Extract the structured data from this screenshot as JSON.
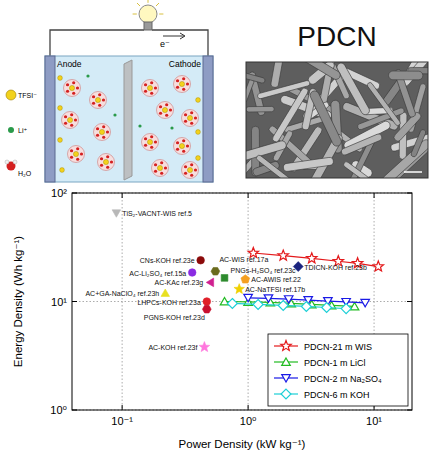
{
  "diagram": {
    "anode": "Anode",
    "cathode": "Cathode",
    "electron": "e⁻",
    "image_label": "PDCN",
    "ions": [
      {
        "label": "TFSI⁻"
      },
      {
        "label": "Li⁺"
      },
      {
        "label": "H₂O"
      }
    ]
  },
  "chart_data": {
    "type": "scatter",
    "x_label": "Power Density (kW kg⁻¹)",
    "y_label": "Energy Density (Wh kg⁻¹)",
    "log": true,
    "grid": true,
    "legend": "lower right",
    "xlim": [
      0.04,
      20
    ],
    "ylim": [
      1,
      100
    ],
    "xticks": [
      {
        "value": 0.1,
        "label": "10⁻¹"
      },
      {
        "value": 1,
        "label": "10⁰"
      },
      {
        "value": 10,
        "label": "10¹"
      }
    ],
    "yticks": [
      {
        "value": 1,
        "label": "10⁰"
      },
      {
        "value": 10,
        "label": "10¹"
      },
      {
        "value": 100,
        "label": "10²"
      }
    ],
    "series": [
      {
        "name": "PDCN-21 m WIS",
        "type": "line",
        "color": "#e41a1c",
        "marker": "open-star",
        "x": [
          1.1,
          1.9,
          3.2,
          5.2,
          7.4,
          10.8
        ],
        "values": [
          28,
          26.5,
          25,
          23.5,
          22.5,
          21
        ]
      },
      {
        "name": "PDCN-1 m LiCl",
        "type": "line",
        "color": "#22bb22",
        "marker": "open-triangle-up",
        "x": [
          0.65,
          1.0,
          1.5,
          2.2,
          3.2,
          4.6,
          7.0
        ],
        "values": [
          10,
          9.9,
          9.8,
          9.6,
          9.4,
          9.2,
          9.0
        ]
      },
      {
        "name": "PDCN-2 m Na₂SO₄",
        "type": "line",
        "color": "#1a1ae6",
        "marker": "open-triangle-down",
        "x": [
          1.0,
          1.45,
          2.1,
          3.0,
          4.3,
          6.0,
          8.5
        ],
        "values": [
          10.8,
          10.7,
          10.5,
          10.3,
          10.1,
          9.9,
          9.7
        ]
      },
      {
        "name": "PDCN-6 m KOH",
        "type": "line",
        "color": "#1ccfd6",
        "marker": "open-diamond",
        "x": [
          0.75,
          1.2,
          1.9,
          2.9,
          4.2,
          6.0
        ],
        "values": [
          9.6,
          9.4,
          9.2,
          9.0,
          8.8,
          8.6
        ]
      },
      {
        "name": "TiS₂-VACNT-WIS ref.5",
        "type": "scatter",
        "color": "#b8b8b8",
        "marker": "filled-triangle-down",
        "x": [
          0.09
        ],
        "values": [
          65
        ]
      },
      {
        "name": "CNs-KOH ref.23e",
        "type": "scatter",
        "color": "#8b0a0a",
        "marker": "filled-circle",
        "x": [
          0.42
        ],
        "values": [
          24
        ]
      },
      {
        "name": "AC-WIS ref.17a",
        "type": "scatter",
        "color": "#6b6b1e",
        "marker": "filled-hexagon",
        "x": [
          0.55
        ],
        "values": [
          19
        ]
      },
      {
        "name": "AC-Li₂SO₄ ref.15a",
        "type": "scatter",
        "color": "#8a2be2",
        "marker": "filled-circle",
        "x": [
          0.36
        ],
        "values": [
          18.5
        ]
      },
      {
        "name": "AC-KAc ref.23g",
        "type": "scatter",
        "color": "#d02090",
        "marker": "filled-triangle-left",
        "x": [
          0.5
        ],
        "values": [
          15
        ]
      },
      {
        "name": "AC+GA-NaClO₄ ref.23h",
        "type": "scatter",
        "color": "#e8e020",
        "marker": "filled-triangle-up",
        "x": [
          0.22
        ],
        "values": [
          12
        ]
      },
      {
        "name": "PNGs-H₂SO₄ ref.23c",
        "type": "scatter",
        "color": "#2e8b2e",
        "marker": "filled-square",
        "x": [
          0.65
        ],
        "values": [
          16.5
        ]
      },
      {
        "name": "TDICN-KOH ref.23b",
        "type": "scatter",
        "color": "#1a237e",
        "marker": "filled-diamond",
        "x": [
          2.5
        ],
        "values": [
          21
        ]
      },
      {
        "name": "AC-AWIS ref.22",
        "type": "scatter",
        "color": "#f5a020",
        "marker": "filled-pentagon",
        "x": [
          0.95
        ],
        "values": [
          16
        ]
      },
      {
        "name": "AC-NaTFSI ref.17b",
        "type": "scatter",
        "color": "#f0d000",
        "marker": "filled-star",
        "x": [
          0.85
        ],
        "values": [
          13
        ]
      },
      {
        "name": "LHPCs-KOH ref.23a",
        "type": "scatter",
        "color": "#e0202a",
        "marker": "filled-circle",
        "x": [
          0.47
        ],
        "values": [
          10
        ]
      },
      {
        "name": "PGNS-KOH ref.23d",
        "type": "scatter",
        "color": "#c81030",
        "marker": "filled-hexagon",
        "x": [
          0.47
        ],
        "values": [
          8.5
        ]
      },
      {
        "name": "AC-KOH ref.23f",
        "type": "scatter",
        "color": "#ff77dd",
        "marker": "filled-star",
        "x": [
          0.45
        ],
        "values": [
          3.8
        ]
      }
    ]
  }
}
